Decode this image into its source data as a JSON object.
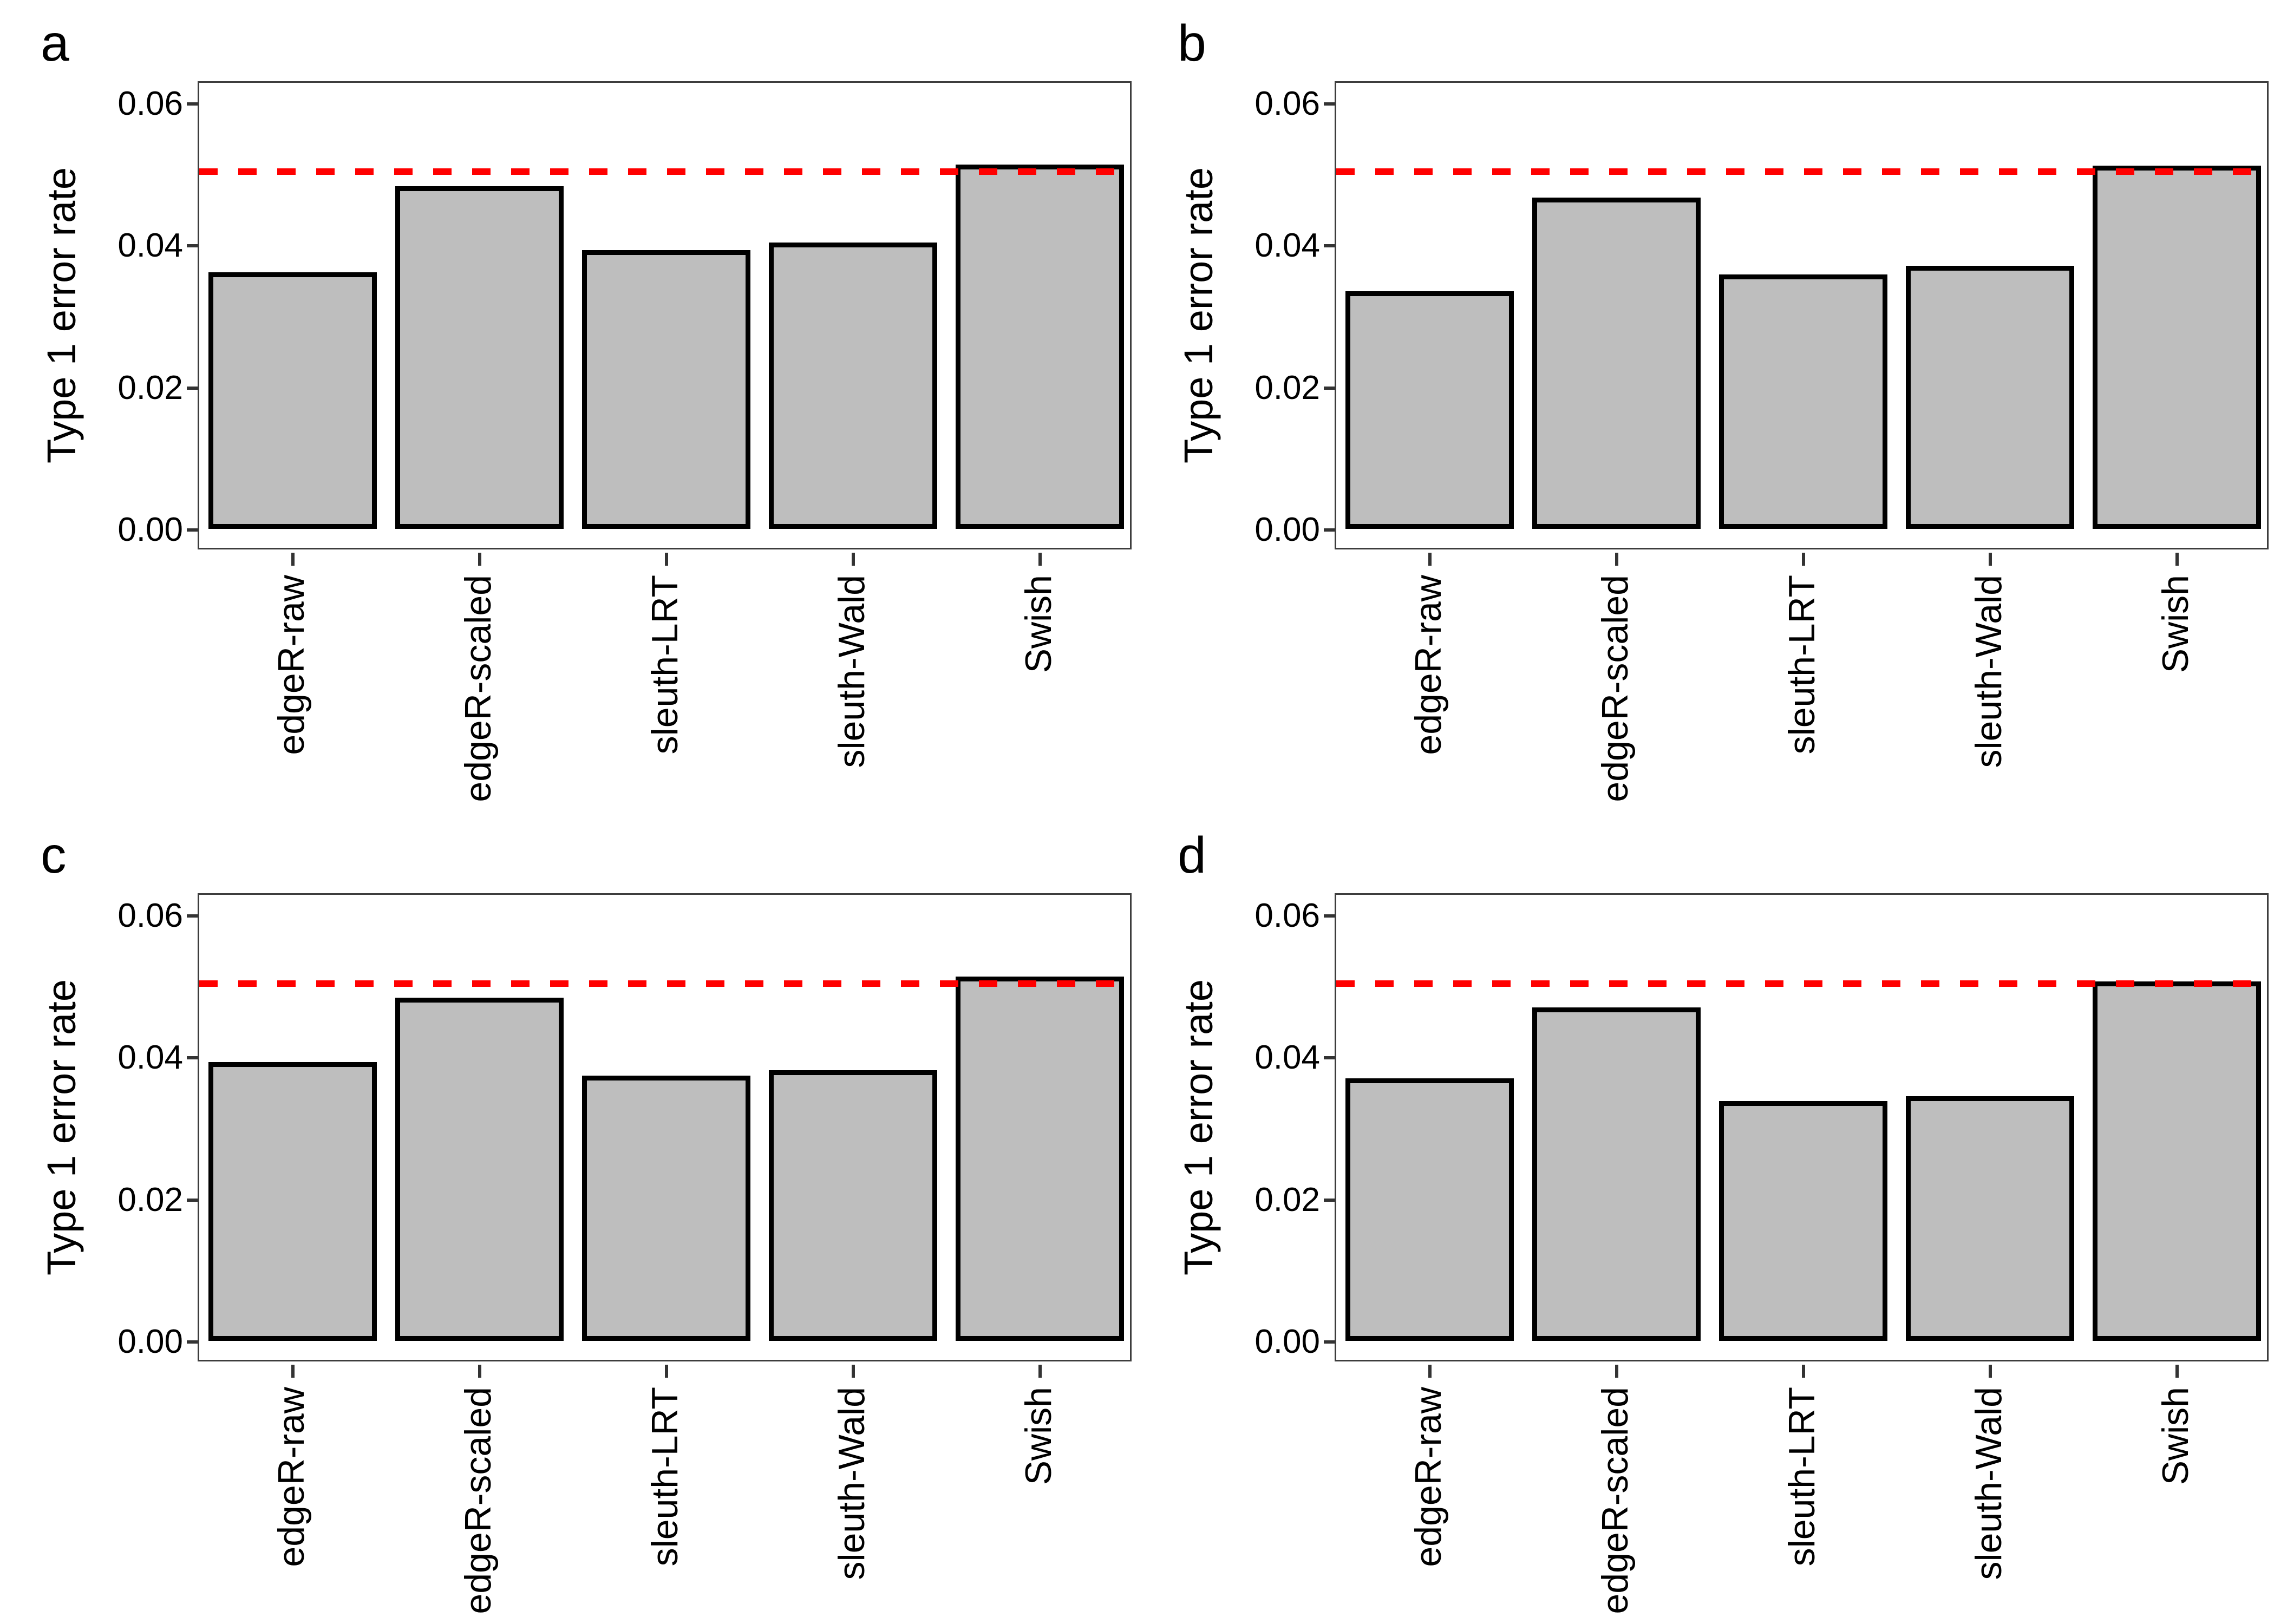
{
  "figure_title": "",
  "ui": {
    "background": "#ffffff"
  },
  "colors": {
    "bar_fill": "#BEBEBE",
    "bar_stroke": "#000000",
    "reference_line": "#FF0000",
    "panel_border": "#3d3d3d",
    "tick_color": "#333333",
    "text": "#000000"
  },
  "axis": {
    "ylabel": "Type 1 error rate",
    "ytick_labels": [
      "0.00",
      "0.02",
      "0.04",
      "0.06"
    ],
    "ytick_values": [
      0,
      0.02,
      0.04,
      0.06
    ],
    "ymax": 0.06,
    "expand": 0.003,
    "reference_value": 0.05
  },
  "chart_data": [
    {
      "type": "bar",
      "panel_label": "a",
      "categories": [
        "edgeR-raw",
        "edgeR-scaled",
        "sleuth-LRT",
        "sleuth-Wald",
        "Swish"
      ],
      "values": [
        0.0355,
        0.0476,
        0.0386,
        0.0397,
        0.0507
      ],
      "title": "",
      "xlabel": "",
      "ylabel": "Type 1 error rate",
      "ylim": [
        0,
        0.06
      ],
      "yticks": [
        "0.00",
        "0.02",
        "0.04",
        "0.06"
      ],
      "reference_line": 0.05,
      "reference_style": "dashed",
      "reference_color": "#FF0000",
      "grid": false,
      "legend": "none"
    },
    {
      "type": "bar",
      "panel_label": "b",
      "categories": [
        "edgeR-raw",
        "edgeR-scaled",
        "sleuth-LRT",
        "sleuth-Wald",
        "Swish"
      ],
      "values": [
        0.0328,
        0.046,
        0.0352,
        0.0364,
        0.0505
      ],
      "title": "",
      "xlabel": "",
      "ylabel": "Type 1 error rate",
      "ylim": [
        0,
        0.06
      ],
      "yticks": [
        "0.00",
        "0.02",
        "0.04",
        "0.06"
      ],
      "reference_line": 0.05,
      "reference_style": "dashed",
      "reference_color": "#FF0000",
      "grid": false,
      "legend": "none"
    },
    {
      "type": "bar",
      "panel_label": "c",
      "categories": [
        "edgeR-raw",
        "edgeR-scaled",
        "sleuth-LRT",
        "sleuth-Wald",
        "Swish"
      ],
      "values": [
        0.0386,
        0.0477,
        0.0367,
        0.0375,
        0.0507
      ],
      "title": "",
      "xlabel": "",
      "ylabel": "Type 1 error rate",
      "ylim": [
        0,
        0.06
      ],
      "yticks": [
        "0.00",
        "0.02",
        "0.04",
        "0.06"
      ],
      "reference_line": 0.05,
      "reference_style": "dashed",
      "reference_color": "#FF0000",
      "grid": false,
      "legend": "none"
    },
    {
      "type": "bar",
      "panel_label": "d",
      "categories": [
        "edgeR-raw",
        "edgeR-scaled",
        "sleuth-LRT",
        "sleuth-Wald",
        "Swish"
      ],
      "values": [
        0.0363,
        0.0463,
        0.0331,
        0.0338,
        0.05
      ],
      "title": "",
      "xlabel": "",
      "ylabel": "Type 1 error rate",
      "ylim": [
        0,
        0.06
      ],
      "yticks": [
        "0.00",
        "0.02",
        "0.04",
        "0.06"
      ],
      "reference_line": 0.05,
      "reference_style": "dashed",
      "reference_color": "#FF0000",
      "grid": false,
      "legend": "none"
    }
  ]
}
